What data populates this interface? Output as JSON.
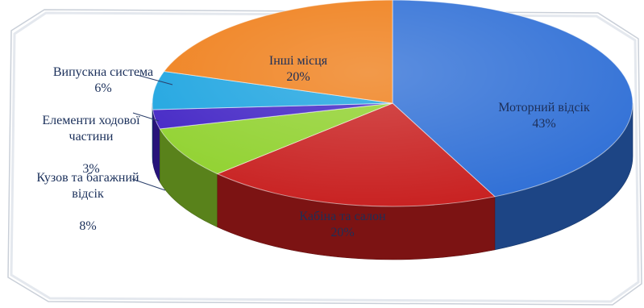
{
  "chart_data": {
    "type": "pie",
    "style": "3d",
    "title": "",
    "slices": [
      {
        "label": "Моторний відсік",
        "value": 43,
        "value_label": "43%",
        "color": "#2f6fd6"
      },
      {
        "label": "Кабіна та салон",
        "value": 20,
        "value_label": "20%",
        "color": "#c81f1f"
      },
      {
        "label": "Кузов та багажний відсік",
        "value": 8,
        "value_label": "8%",
        "color": "#8fd12c"
      },
      {
        "label": "Елементи ходової частини",
        "value": 3,
        "value_label": "3%",
        "color": "#3f21c4"
      },
      {
        "label": "Випускна система",
        "value": 6,
        "value_label": "6%",
        "color": "#1aa3e0"
      },
      {
        "label": "Інші місця",
        "value": 20,
        "value_label": "20%",
        "color": "#ef7d17"
      }
    ]
  }
}
